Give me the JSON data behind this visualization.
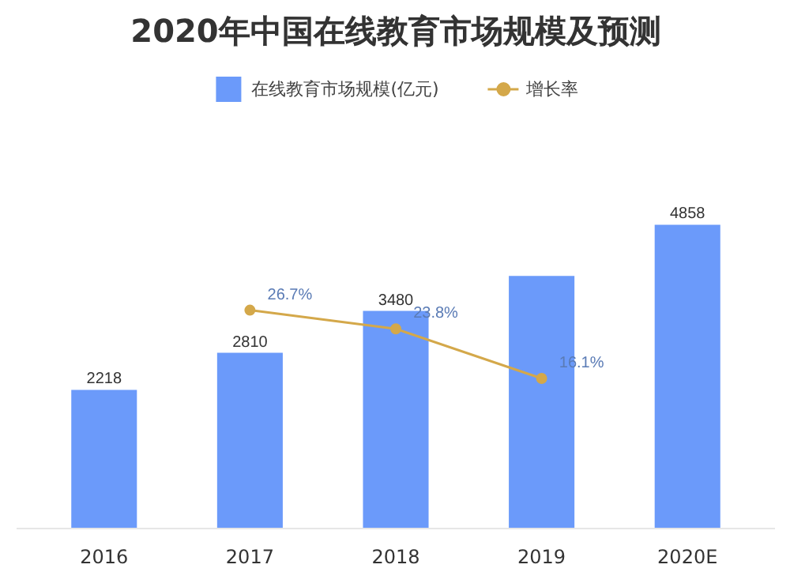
{
  "chart_data": {
    "type": "bar",
    "title": "2020年中国在线教育市场规模及预测",
    "categories": [
      "2016",
      "2017",
      "2018",
      "2019",
      "2020E"
    ],
    "series": [
      {
        "name": "在线教育市场规模(亿元)",
        "color": "#5b8ff9",
        "values": [
          2218,
          2810,
          3480,
          4041,
          4858
        ],
        "value_labels": [
          "2218",
          "2810",
          "3480",
          null,
          "4858"
        ]
      },
      {
        "name": "增长率",
        "type": "line",
        "axis": "y2",
        "color": "#d4a84a",
        "marker": "circle",
        "values": [
          null,
          26.7,
          23.8,
          16.1,
          null
        ],
        "value_labels": [
          null,
          "26.7%",
          "23.8%",
          "16.1%",
          null
        ]
      }
    ],
    "legend": "top",
    "grid": false
  }
}
